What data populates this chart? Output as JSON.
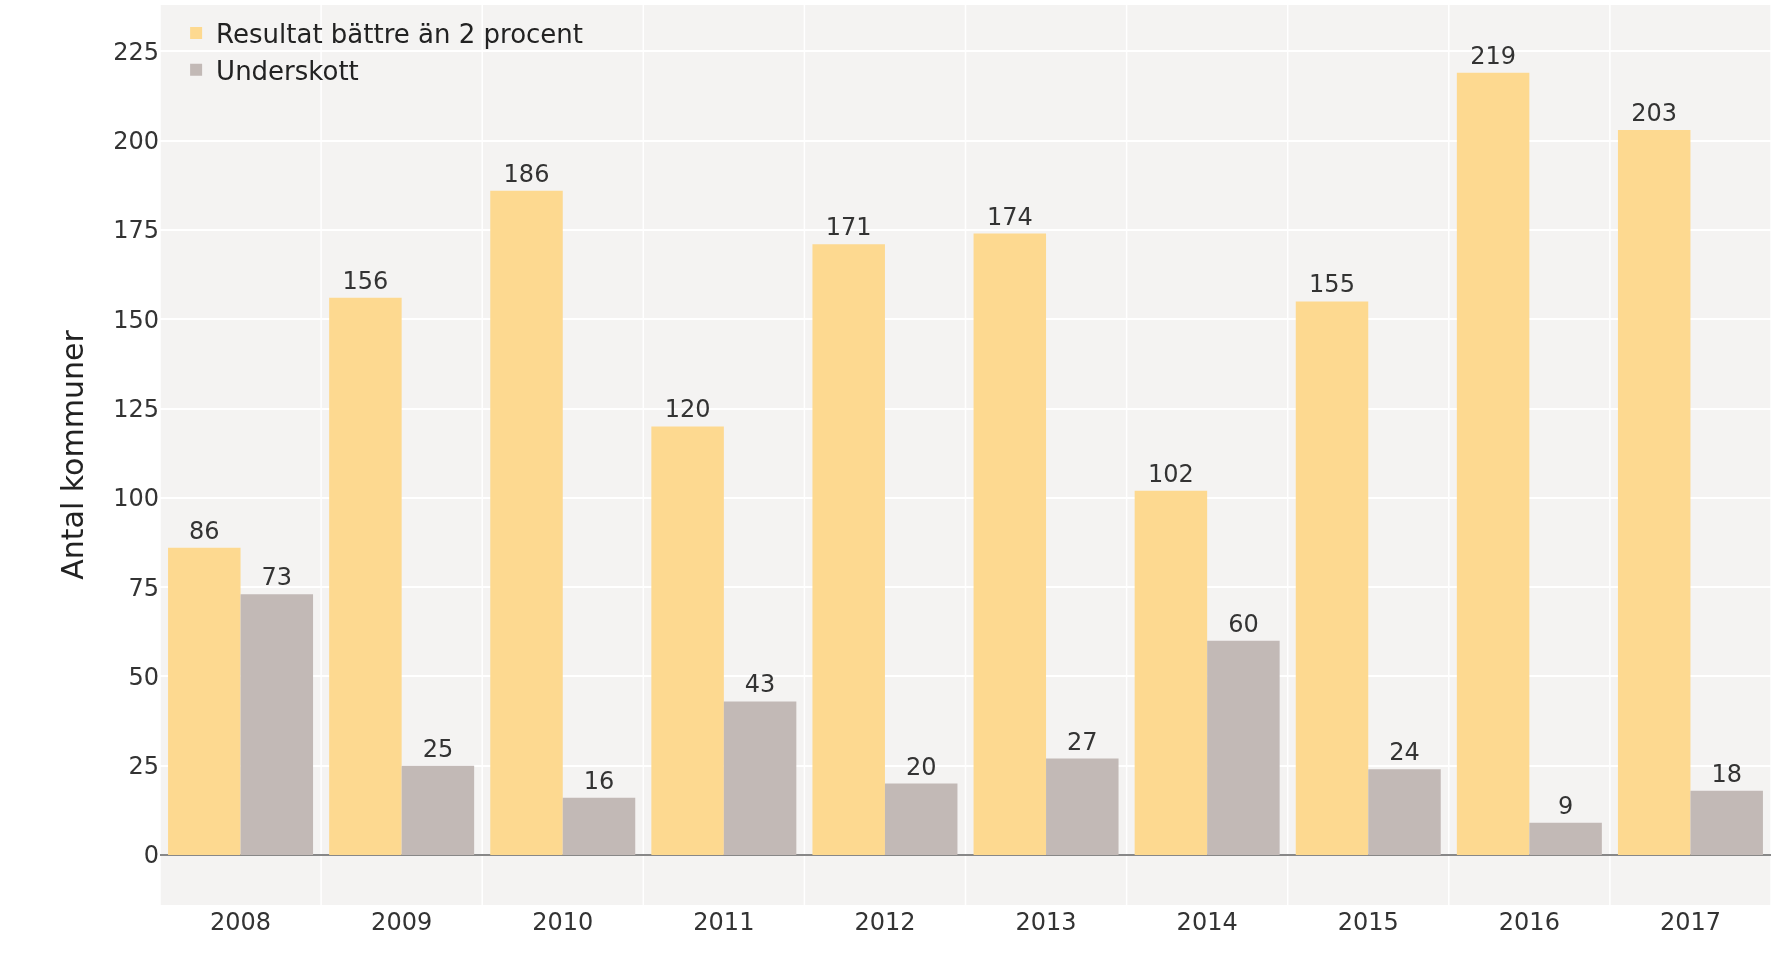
{
  "chart_data": {
    "type": "bar",
    "ylabel": "Antal kommuner",
    "categories": [
      "2008",
      "2009",
      "2010",
      "2011",
      "2012",
      "2013",
      "2014",
      "2015",
      "2016",
      "2017"
    ],
    "series": [
      {
        "name": "Resultat bättre än 2 procent",
        "color": "#fdd990",
        "values": [
          86,
          156,
          186,
          120,
          171,
          174,
          102,
          155,
          219,
          203
        ]
      },
      {
        "name": "Underskott",
        "color": "#c2b9b6",
        "values": [
          73,
          25,
          16,
          43,
          20,
          27,
          60,
          24,
          9,
          18
        ]
      }
    ],
    "ylim": [
      -14,
      238
    ],
    "yticks": [
      0,
      25,
      50,
      75,
      100,
      125,
      150,
      175,
      200,
      225
    ],
    "data_labels": true,
    "grid": true,
    "legend": "top left"
  }
}
